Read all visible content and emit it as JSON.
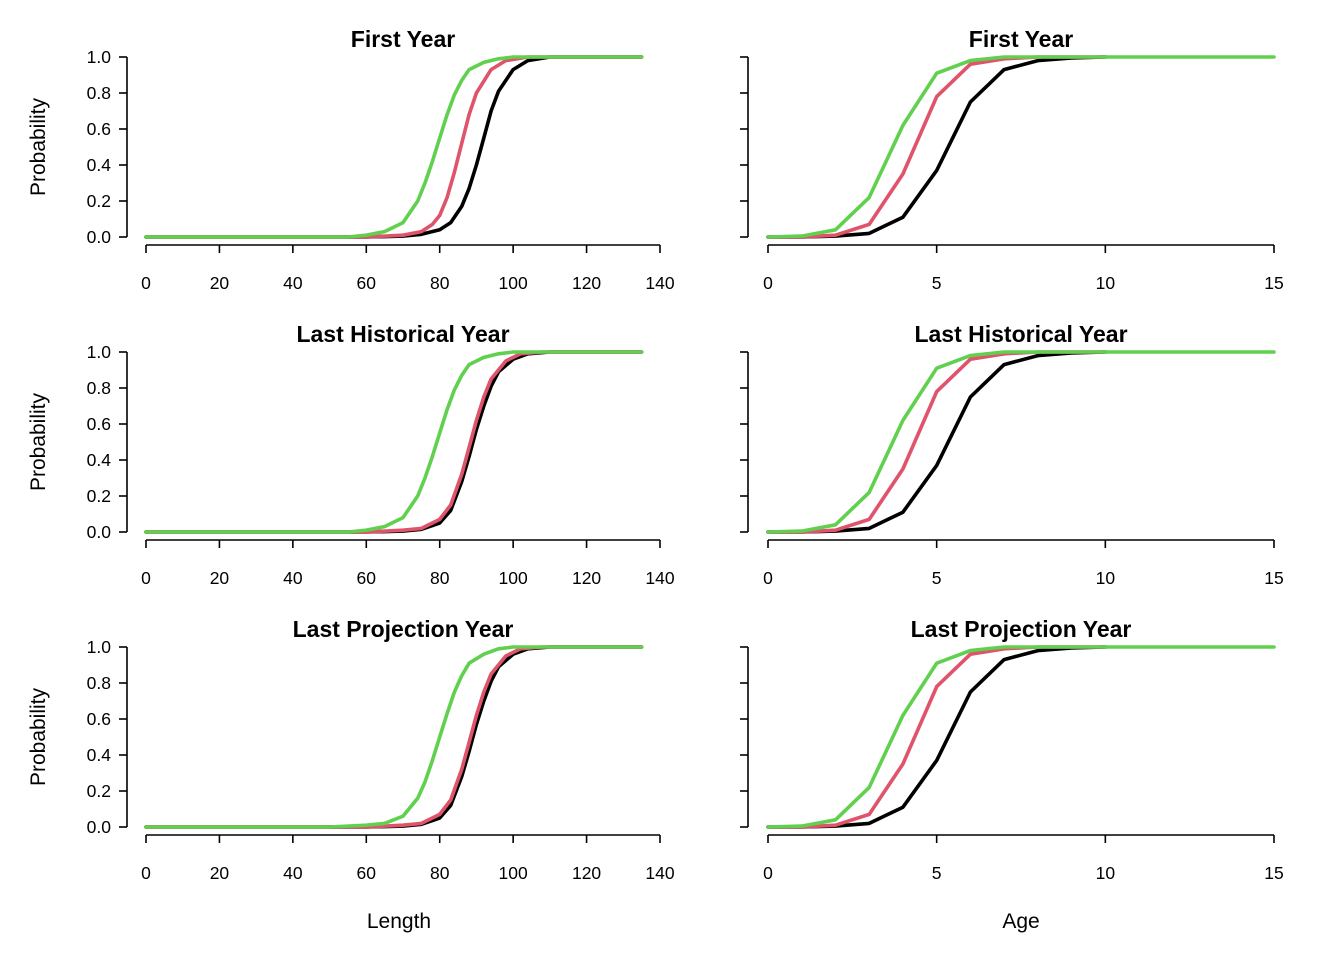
{
  "xlabels": {
    "left": "Length",
    "right": "Age"
  },
  "colors": {
    "black": "#000000",
    "red": "#DF536B",
    "green": "#61D04F"
  },
  "chart_data": [
    {
      "type": "line",
      "title": "First Year",
      "xlabel": "",
      "ylabel": "Probability",
      "xlim": [
        0,
        140
      ],
      "ylim": [
        0,
        1
      ],
      "xticks": [
        "0",
        "20",
        "40",
        "60",
        "80",
        "100",
        "120",
        "140"
      ],
      "yticks": [
        "0.0",
        "0.2",
        "0.4",
        "0.6",
        "0.8",
        "1.0"
      ],
      "show_ytick_labels": true,
      "series": [
        {
          "color": "#000000",
          "x": [
            0,
            60,
            70,
            75,
            80,
            83,
            86,
            88,
            90,
            92,
            94,
            96,
            100,
            104,
            110,
            135
          ],
          "y": [
            0,
            0,
            0.005,
            0.015,
            0.04,
            0.08,
            0.17,
            0.27,
            0.4,
            0.55,
            0.7,
            0.81,
            0.93,
            0.98,
            1.0,
            1.0
          ]
        },
        {
          "color": "#DF536B",
          "x": [
            0,
            60,
            70,
            75,
            78,
            80,
            82,
            84,
            86,
            88,
            90,
            94,
            98,
            104,
            110,
            135
          ],
          "y": [
            0,
            0,
            0.01,
            0.03,
            0.07,
            0.12,
            0.22,
            0.36,
            0.52,
            0.68,
            0.8,
            0.93,
            0.98,
            1.0,
            1.0,
            1.0
          ]
        },
        {
          "color": "#61D04F",
          "x": [
            0,
            55,
            60,
            65,
            70,
            74,
            76,
            78,
            80,
            82,
            84,
            86,
            88,
            92,
            96,
            100,
            106,
            135
          ],
          "y": [
            0,
            0,
            0.01,
            0.03,
            0.08,
            0.2,
            0.3,
            0.42,
            0.55,
            0.68,
            0.79,
            0.87,
            0.93,
            0.97,
            0.99,
            1.0,
            1.0,
            1.0
          ]
        }
      ]
    },
    {
      "type": "line",
      "title": "First Year",
      "xlabel": "",
      "ylabel": "",
      "xlim": [
        0,
        15
      ],
      "ylim": [
        0,
        1
      ],
      "xticks": [
        "0",
        "5",
        "10",
        "15"
      ],
      "yticks": [
        "0.0",
        "0.2",
        "0.4",
        "0.6",
        "0.8",
        "1.0"
      ],
      "show_ytick_labels": false,
      "series": [
        {
          "color": "#000000",
          "x": [
            0,
            1,
            2,
            3,
            4,
            5,
            6,
            7,
            8,
            9,
            10
          ],
          "y": [
            0,
            0,
            0.005,
            0.02,
            0.11,
            0.37,
            0.75,
            0.93,
            0.98,
            0.995,
            1.0
          ]
        },
        {
          "color": "#DF536B",
          "x": [
            0,
            1,
            2,
            3,
            4,
            5,
            6,
            7,
            8,
            9,
            10
          ],
          "y": [
            0,
            0,
            0.01,
            0.07,
            0.35,
            0.78,
            0.96,
            0.99,
            1.0,
            1.0,
            1.0
          ]
        },
        {
          "color": "#61D04F",
          "x": [
            0,
            1,
            2,
            3,
            4,
            5,
            6,
            7,
            8,
            9,
            10,
            11,
            12,
            13,
            14,
            15
          ],
          "y": [
            0,
            0.005,
            0.04,
            0.22,
            0.62,
            0.91,
            0.98,
            1.0,
            1.0,
            1.0,
            1.0,
            1.0,
            1.0,
            1.0,
            1.0,
            1.0
          ]
        }
      ]
    },
    {
      "type": "line",
      "title": "Last Historical Year",
      "xlabel": "",
      "ylabel": "Probability",
      "xlim": [
        0,
        140
      ],
      "ylim": [
        0,
        1
      ],
      "xticks": [
        "0",
        "20",
        "40",
        "60",
        "80",
        "100",
        "120",
        "140"
      ],
      "yticks": [
        "0.0",
        "0.2",
        "0.4",
        "0.6",
        "0.8",
        "1.0"
      ],
      "show_ytick_labels": true,
      "series": [
        {
          "color": "#000000",
          "x": [
            0,
            60,
            70,
            75,
            80,
            83,
            86,
            88,
            90,
            92,
            94,
            96,
            100,
            104,
            110,
            135
          ],
          "y": [
            0,
            0,
            0.005,
            0.015,
            0.05,
            0.12,
            0.28,
            0.42,
            0.57,
            0.7,
            0.81,
            0.89,
            0.96,
            0.99,
            1.0,
            1.0
          ]
        },
        {
          "color": "#DF536B",
          "x": [
            0,
            60,
            70,
            75,
            80,
            83,
            86,
            88,
            90,
            92,
            94,
            98,
            102,
            108,
            135
          ],
          "y": [
            0,
            0,
            0.01,
            0.02,
            0.07,
            0.15,
            0.32,
            0.47,
            0.62,
            0.75,
            0.85,
            0.95,
            0.99,
            1.0,
            1.0
          ]
        },
        {
          "color": "#61D04F",
          "x": [
            0,
            55,
            60,
            65,
            70,
            74,
            76,
            78,
            80,
            82,
            84,
            86,
            88,
            92,
            96,
            100,
            106,
            135
          ],
          "y": [
            0,
            0,
            0.01,
            0.03,
            0.08,
            0.2,
            0.3,
            0.42,
            0.55,
            0.68,
            0.79,
            0.87,
            0.93,
            0.97,
            0.99,
            1.0,
            1.0,
            1.0
          ]
        }
      ]
    },
    {
      "type": "line",
      "title": "Last Historical Year",
      "xlabel": "",
      "ylabel": "",
      "xlim": [
        0,
        15
      ],
      "ylim": [
        0,
        1
      ],
      "xticks": [
        "0",
        "5",
        "10",
        "15"
      ],
      "yticks": [
        "0.0",
        "0.2",
        "0.4",
        "0.6",
        "0.8",
        "1.0"
      ],
      "show_ytick_labels": false,
      "series": [
        {
          "color": "#000000",
          "x": [
            0,
            1,
            2,
            3,
            4,
            5,
            6,
            7,
            8,
            9,
            10
          ],
          "y": [
            0,
            0,
            0.005,
            0.02,
            0.11,
            0.37,
            0.75,
            0.93,
            0.98,
            0.995,
            1.0
          ]
        },
        {
          "color": "#DF536B",
          "x": [
            0,
            1,
            2,
            3,
            4,
            5,
            6,
            7,
            8,
            9,
            10
          ],
          "y": [
            0,
            0,
            0.01,
            0.07,
            0.35,
            0.78,
            0.96,
            0.99,
            1.0,
            1.0,
            1.0
          ]
        },
        {
          "color": "#61D04F",
          "x": [
            0,
            1,
            2,
            3,
            4,
            5,
            6,
            7,
            8,
            9,
            10,
            11,
            12,
            13,
            14,
            15
          ],
          "y": [
            0,
            0.005,
            0.04,
            0.22,
            0.62,
            0.91,
            0.98,
            1.0,
            1.0,
            1.0,
            1.0,
            1.0,
            1.0,
            1.0,
            1.0,
            1.0
          ]
        }
      ]
    },
    {
      "type": "line",
      "title": "Last Projection Year",
      "xlabel": "",
      "ylabel": "Probability",
      "xlim": [
        0,
        140
      ],
      "ylim": [
        0,
        1
      ],
      "xticks": [
        "0",
        "20",
        "40",
        "60",
        "80",
        "100",
        "120",
        "140"
      ],
      "yticks": [
        "0.0",
        "0.2",
        "0.4",
        "0.6",
        "0.8",
        "1.0"
      ],
      "show_ytick_labels": true,
      "series": [
        {
          "color": "#000000",
          "x": [
            0,
            60,
            70,
            75,
            80,
            83,
            86,
            88,
            90,
            92,
            94,
            96,
            100,
            104,
            110,
            135
          ],
          "y": [
            0,
            0,
            0.005,
            0.015,
            0.05,
            0.12,
            0.28,
            0.42,
            0.57,
            0.7,
            0.81,
            0.89,
            0.96,
            0.99,
            1.0,
            1.0
          ]
        },
        {
          "color": "#DF536B",
          "x": [
            0,
            60,
            70,
            75,
            80,
            83,
            86,
            88,
            90,
            92,
            94,
            98,
            102,
            108,
            135
          ],
          "y": [
            0,
            0,
            0.01,
            0.02,
            0.07,
            0.15,
            0.32,
            0.47,
            0.62,
            0.75,
            0.85,
            0.95,
            0.99,
            1.0,
            1.0
          ]
        },
        {
          "color": "#61D04F",
          "x": [
            0,
            50,
            60,
            65,
            70,
            74,
            76,
            78,
            80,
            82,
            84,
            86,
            88,
            92,
            96,
            100,
            106,
            135
          ],
          "y": [
            0,
            0,
            0.01,
            0.02,
            0.06,
            0.16,
            0.25,
            0.37,
            0.5,
            0.63,
            0.75,
            0.84,
            0.91,
            0.96,
            0.99,
            1.0,
            1.0,
            1.0
          ]
        }
      ]
    },
    {
      "type": "line",
      "title": "Last Projection Year",
      "xlabel": "",
      "ylabel": "",
      "xlim": [
        0,
        15
      ],
      "ylim": [
        0,
        1
      ],
      "xticks": [
        "0",
        "5",
        "10",
        "15"
      ],
      "yticks": [
        "0.0",
        "0.2",
        "0.4",
        "0.6",
        "0.8",
        "1.0"
      ],
      "show_ytick_labels": false,
      "series": [
        {
          "color": "#000000",
          "x": [
            0,
            1,
            2,
            3,
            4,
            5,
            6,
            7,
            8,
            9,
            10
          ],
          "y": [
            0,
            0,
            0.005,
            0.02,
            0.11,
            0.37,
            0.75,
            0.93,
            0.98,
            0.995,
            1.0
          ]
        },
        {
          "color": "#DF536B",
          "x": [
            0,
            1,
            2,
            3,
            4,
            5,
            6,
            7,
            8,
            9,
            10
          ],
          "y": [
            0,
            0,
            0.01,
            0.07,
            0.35,
            0.78,
            0.96,
            0.99,
            1.0,
            1.0,
            1.0
          ]
        },
        {
          "color": "#61D04F",
          "x": [
            0,
            1,
            2,
            3,
            4,
            5,
            6,
            7,
            8,
            9,
            10,
            11,
            12,
            13,
            14,
            15
          ],
          "y": [
            0,
            0.005,
            0.04,
            0.22,
            0.62,
            0.91,
            0.98,
            1.0,
            1.0,
            1.0,
            1.0,
            1.0,
            1.0,
            1.0,
            1.0,
            1.0
          ]
        }
      ]
    }
  ]
}
